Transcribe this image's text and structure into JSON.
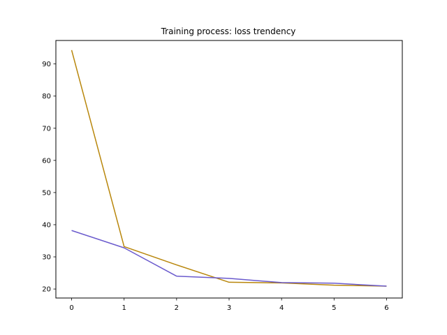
{
  "chart_data": {
    "type": "line",
    "title": "Training process: loss trendency",
    "xlabel": "",
    "ylabel": "",
    "x": [
      0,
      1,
      2,
      3,
      4,
      5,
      6
    ],
    "xlim": [
      -0.3,
      6.3
    ],
    "ylim": [
      17.2,
      97.3
    ],
    "xticks": [
      0,
      1,
      2,
      3,
      4,
      5,
      6
    ],
    "yticks": [
      20,
      30,
      40,
      50,
      60,
      70,
      80,
      90
    ],
    "grid": false,
    "legend": "none",
    "series": [
      {
        "color": "#b8860b",
        "values": [
          94.3,
          33.2,
          27.5,
          22.1,
          21.9,
          21.2,
          20.9
        ]
      },
      {
        "color": "#6a5acd",
        "values": [
          38.2,
          32.8,
          24.0,
          23.3,
          22.0,
          21.8,
          20.9
        ]
      }
    ]
  }
}
